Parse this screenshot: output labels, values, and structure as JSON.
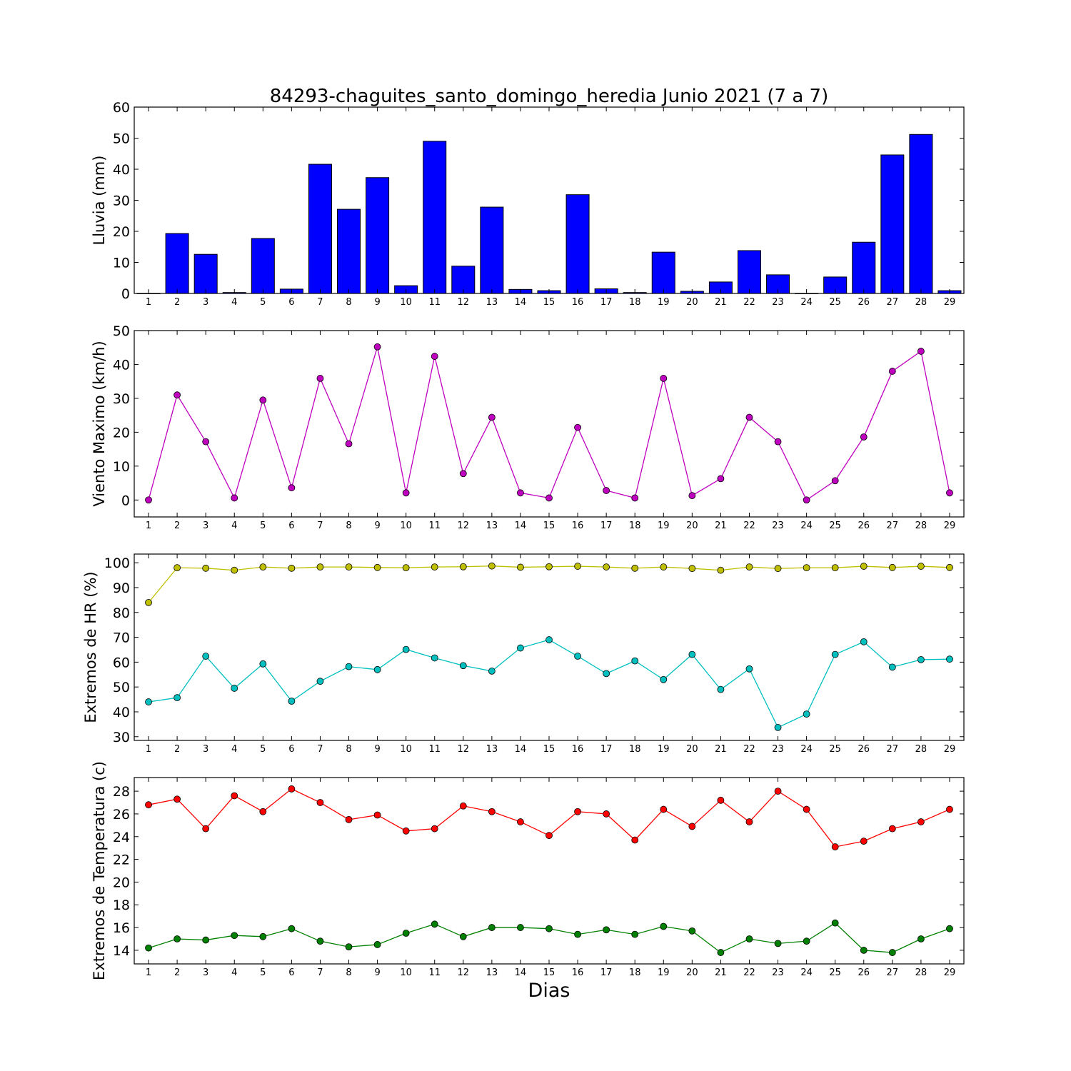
{
  "chart_data": {
    "title": "84293-chaguites_santo_domingo_heredia Junio 2021  (7 a 7)",
    "xlabel": "Dias",
    "days": [
      1,
      2,
      3,
      4,
      5,
      6,
      7,
      8,
      9,
      10,
      11,
      12,
      13,
      14,
      15,
      16,
      17,
      18,
      19,
      20,
      21,
      22,
      23,
      24,
      25,
      26,
      27,
      28,
      29
    ],
    "panels": [
      {
        "type": "bar",
        "ylabel": "Lluvia (mm)",
        "ylim": [
          0,
          60
        ],
        "yticks": [
          0,
          10,
          20,
          30,
          40,
          50,
          60
        ],
        "series": [
          {
            "color": "#0000ff",
            "values": [
              0,
              19.3,
              12.6,
              0.3,
              17.7,
              1.4,
              41.6,
              27.1,
              37.3,
              2.5,
              49.0,
              8.8,
              27.8,
              1.3,
              0.9,
              31.8,
              1.5,
              0.3,
              13.3,
              0.7,
              3.7,
              13.8,
              6.0,
              0,
              5.3,
              16.5,
              44.6,
              51.2,
              0.9
            ]
          }
        ]
      },
      {
        "type": "line",
        "ylabel": "Viento Maximo (km/h)",
        "ylim": [
          -5,
          50
        ],
        "yticks": [
          0,
          10,
          20,
          30,
          40,
          50
        ],
        "series": [
          {
            "color": "#bf00bf",
            "values": [
              0,
              31.0,
              17.2,
              0.6,
              29.5,
              3.6,
              35.9,
              16.6,
              45.2,
              2.1,
              42.4,
              7.8,
              24.4,
              2.1,
              0.6,
              21.4,
              2.8,
              0.6,
              35.9,
              1.3,
              6.3,
              24.4,
              17.2,
              0,
              5.7,
              18.6,
              38.0,
              43.9,
              2.1
            ]
          }
        ]
      },
      {
        "type": "line",
        "ylabel": "Extremos de HR (%)",
        "ylim": [
          28.5,
          103.5
        ],
        "yticks": [
          30,
          40,
          50,
          60,
          70,
          80,
          90,
          100
        ],
        "series": [
          {
            "color": "#bfbf00",
            "values": [
              84,
              98,
              97.8,
              97,
              98.3,
              97.8,
              98.3,
              98.3,
              98.1,
              98,
              98.3,
              98.4,
              98.7,
              98.2,
              98.4,
              98.6,
              98.3,
              97.8,
              98.3,
              97.7,
              97,
              98.3,
              97.7,
              98,
              98,
              98.6,
              98.1,
              98.6,
              98.1
            ]
          },
          {
            "color": "#00bfbf",
            "values": [
              44,
              45.7,
              62.4,
              49.5,
              59.3,
              44.3,
              52.3,
              58.2,
              57,
              65.1,
              61.7,
              58.6,
              56.4,
              65.7,
              69,
              62.4,
              55.4,
              60.5,
              53,
              63.1,
              49,
              57.3,
              33.7,
              39.1,
              63.1,
              68.2,
              58,
              61,
              61.2
            ]
          }
        ]
      },
      {
        "type": "line",
        "ylabel": "Extremos de Temperatura (c)",
        "ylim": [
          12.8,
          29.2
        ],
        "yticks": [
          14,
          16,
          18,
          20,
          22,
          24,
          26,
          28
        ],
        "series": [
          {
            "color": "#ff0000",
            "values": [
              26.8,
              27.3,
              24.7,
              27.6,
              26.2,
              28.2,
              27.0,
              25.5,
              25.9,
              24.5,
              24.7,
              26.7,
              26.2,
              25.3,
              24.1,
              26.2,
              26.0,
              23.7,
              26.4,
              24.9,
              27.2,
              25.3,
              28.0,
              26.4,
              23.1,
              23.6,
              24.7,
              25.3,
              26.4
            ]
          },
          {
            "color": "#008000",
            "values": [
              14.2,
              15.0,
              14.9,
              15.3,
              15.2,
              15.9,
              14.8,
              14.3,
              14.5,
              15.5,
              16.3,
              15.2,
              16.0,
              16.0,
              15.9,
              15.4,
              15.8,
              15.4,
              16.1,
              15.7,
              13.8,
              15.0,
              14.6,
              14.8,
              16.4,
              14.0,
              13.8,
              15.0,
              15.9
            ]
          }
        ]
      }
    ]
  }
}
